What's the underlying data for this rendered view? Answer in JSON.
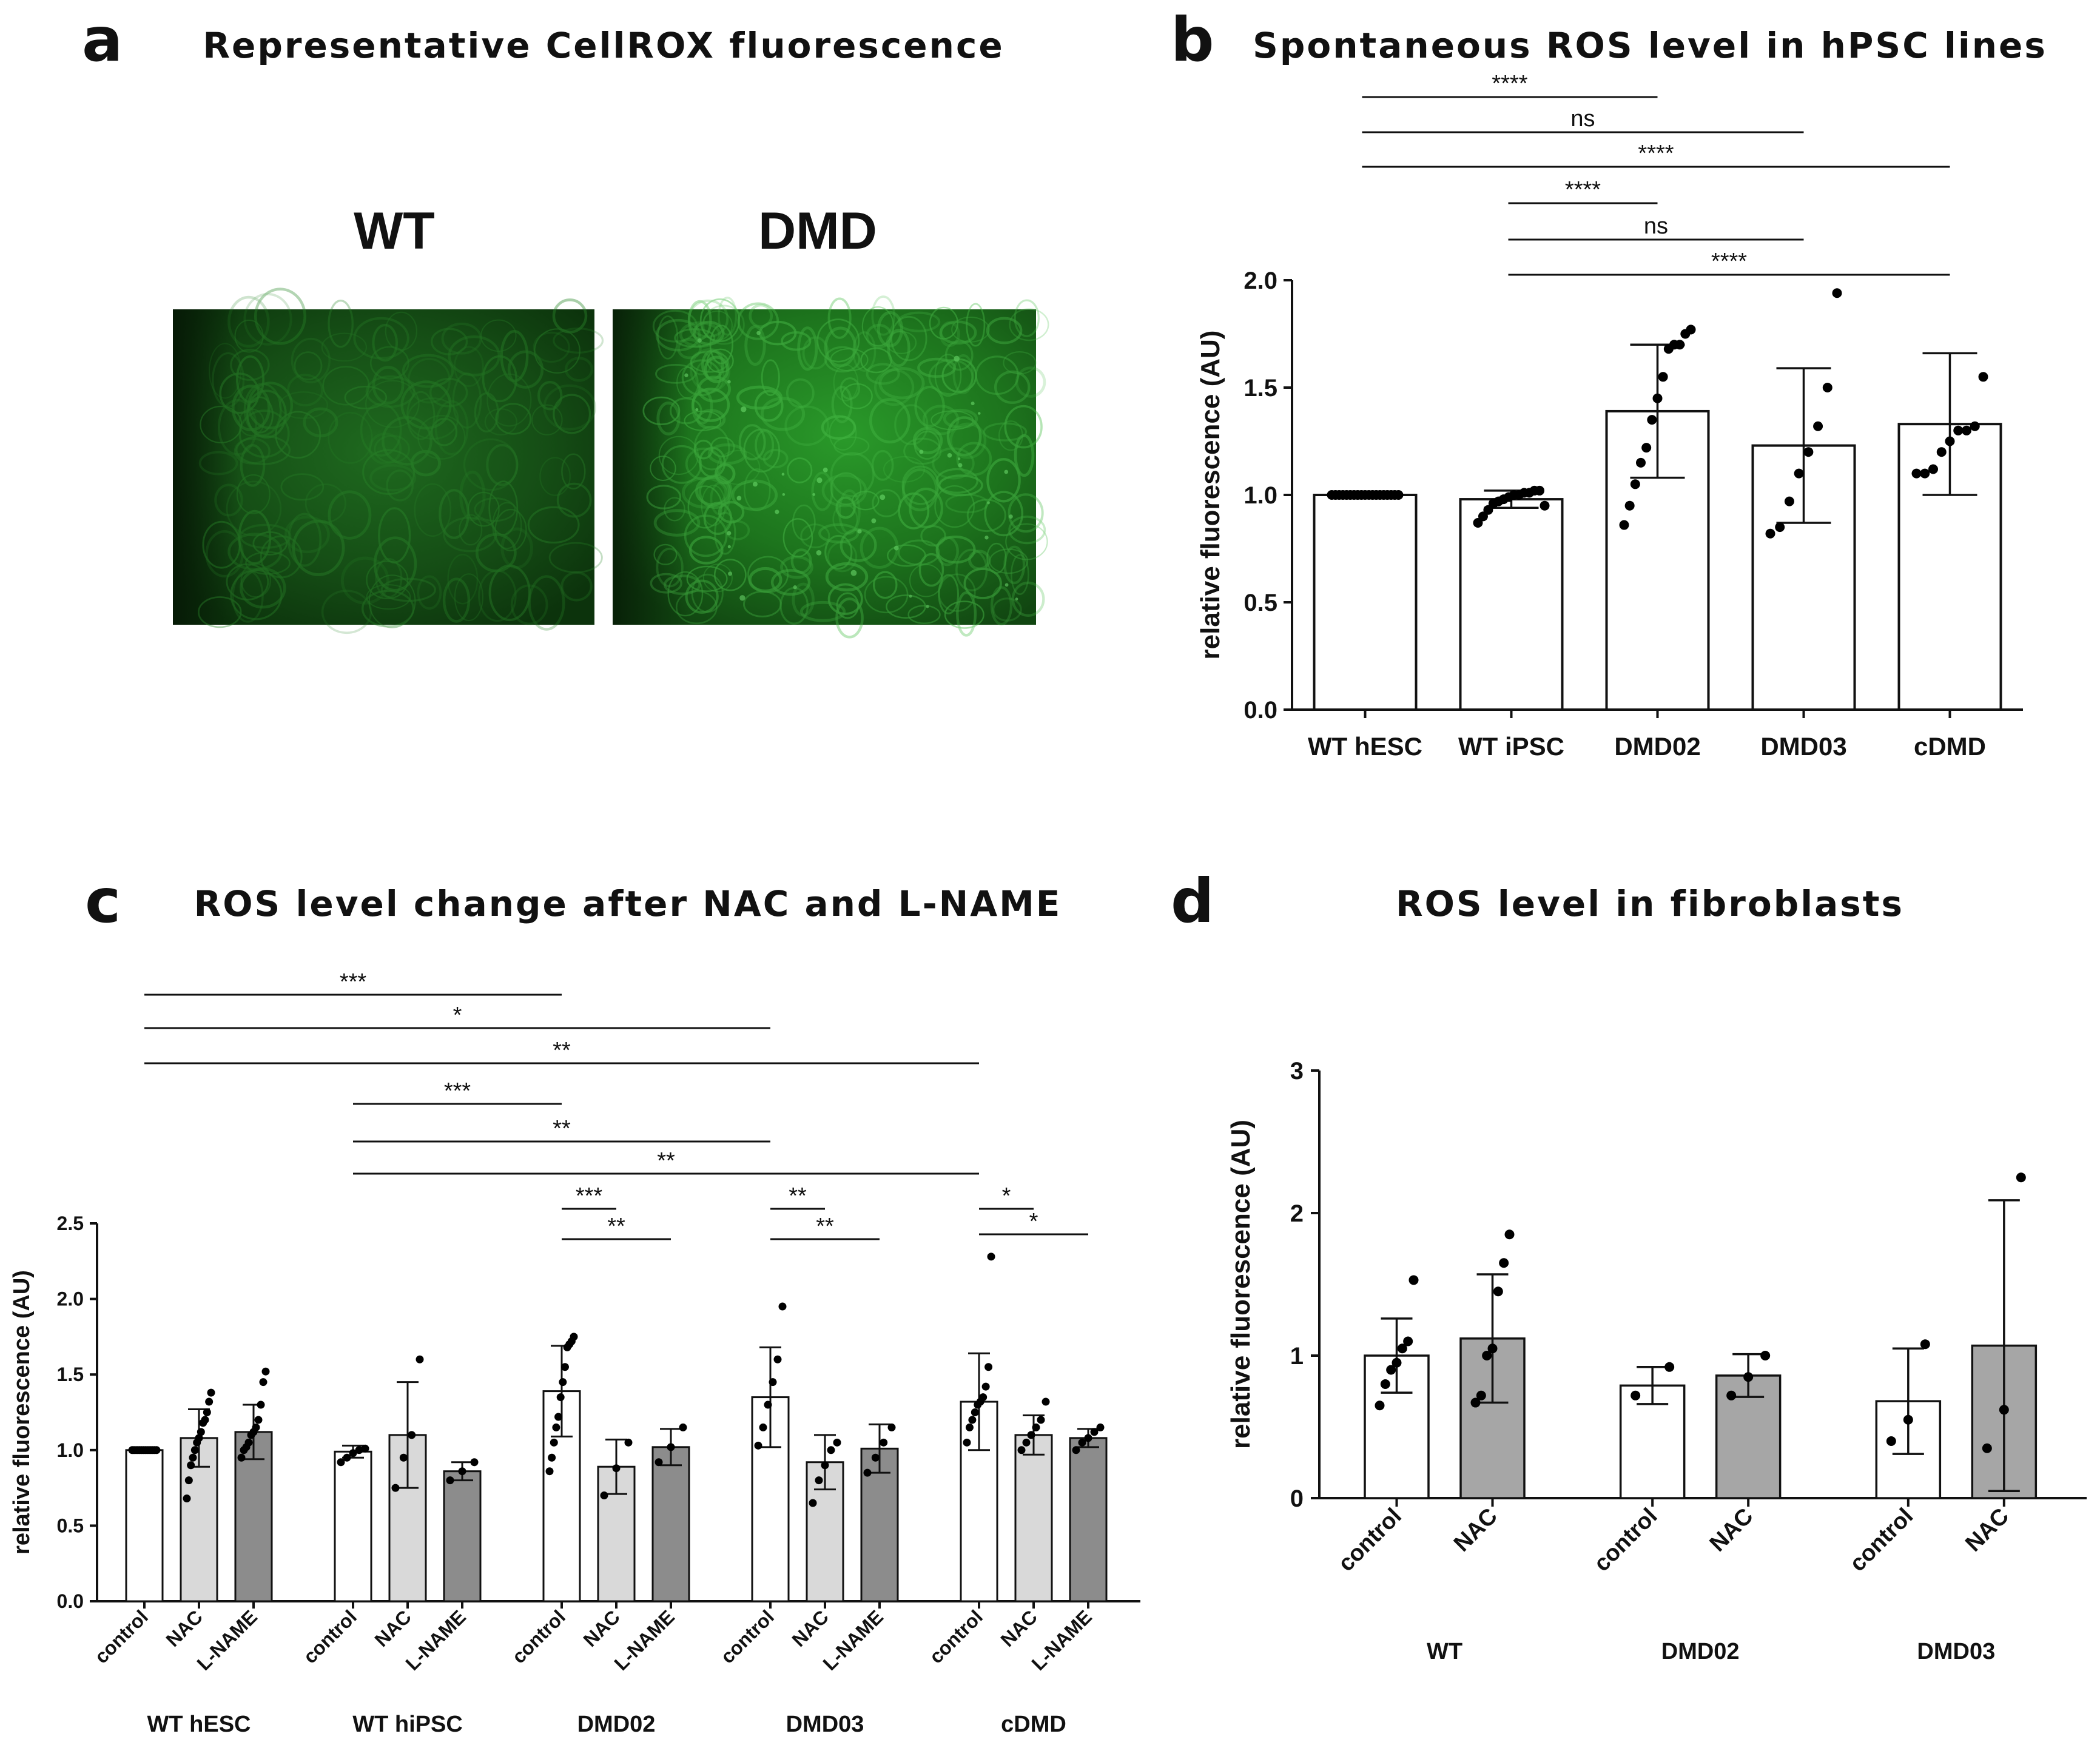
{
  "panels": {
    "a": {
      "letter": "a",
      "title": "Representative CellROX fluorescence",
      "labels": [
        "WT",
        "DMD"
      ],
      "image_colors": {
        "base": "#0c3a0c",
        "bright": "#2fae2f"
      }
    },
    "b": {
      "letter": "b",
      "title": "Spontaneous ROS level in hPSC lines"
    },
    "c": {
      "letter": "c",
      "title": "ROS level change after NAC and L-NAME"
    },
    "d": {
      "letter": "d",
      "title": "ROS level in fibroblasts"
    }
  },
  "colors": {
    "control": "#ffffff",
    "NAC": "#d9d9d9",
    "L-NAME": "#8c8c8c",
    "d_NAC": "#a6a6a6",
    "points": "#000000",
    "axis": "#111111"
  },
  "chart_data": [
    {
      "id": "b",
      "type": "bar",
      "title": "Spontaneous ROS level in hPSC lines",
      "ylabel": "relative fluorescence (AU)",
      "ylim": [
        0,
        2.0
      ],
      "yticks": [
        "0.0",
        "0.5",
        "1.0",
        "1.5",
        "2.0"
      ],
      "categories": [
        "WT hESC",
        "WT iPSC",
        "DMD02",
        "DMD03",
        "cDMD"
      ],
      "values": [
        1.0,
        0.98,
        1.39,
        1.23,
        1.33
      ],
      "error": [
        0.0,
        0.04,
        0.31,
        0.36,
        0.33
      ],
      "points": [
        [
          1,
          1,
          1,
          1,
          1,
          1,
          1,
          1,
          1,
          1,
          1,
          1,
          1,
          1,
          1,
          1,
          1,
          1,
          1
        ],
        [
          0.87,
          0.9,
          0.93,
          0.96,
          0.97,
          0.98,
          0.99,
          1.0,
          1.0,
          1.01,
          1.01,
          1.02,
          1.02,
          0.95
        ],
        [
          0.86,
          0.95,
          1.05,
          1.15,
          1.22,
          1.35,
          1.45,
          1.55,
          1.68,
          1.7,
          1.7,
          1.75,
          1.77
        ],
        [
          0.82,
          0.85,
          0.97,
          1.1,
          1.2,
          1.32,
          1.5,
          1.94
        ],
        [
          1.1,
          1.1,
          1.12,
          1.2,
          1.25,
          1.3,
          1.3,
          1.32,
          1.55
        ]
      ],
      "significance": [
        {
          "from": 0,
          "to": 2,
          "label": "****"
        },
        {
          "from": 0,
          "to": 3,
          "label": "ns"
        },
        {
          "from": 0,
          "to": 4,
          "label": "****"
        },
        {
          "from": 1,
          "to": 2,
          "label": "****"
        },
        {
          "from": 1,
          "to": 3,
          "label": "ns"
        },
        {
          "from": 1,
          "to": 4,
          "label": "****"
        }
      ]
    },
    {
      "id": "c",
      "type": "bar",
      "title": "ROS level change after NAC and L-NAME",
      "ylabel": "relative fluorescence (AU)",
      "ylim": [
        0,
        2.5
      ],
      "yticks": [
        "0.0",
        "0.5",
        "1.0",
        "1.5",
        "2.0",
        "2.5"
      ],
      "groups": [
        "WT hESC",
        "WT hiPSC",
        "DMD02",
        "DMD03",
        "cDMD"
      ],
      "conditions": [
        "control",
        "NAC",
        "L-NAME"
      ],
      "values": [
        [
          1.0,
          1.08,
          1.12
        ],
        [
          0.99,
          1.1,
          0.86
        ],
        [
          1.39,
          0.89,
          1.02
        ],
        [
          1.35,
          0.92,
          1.01
        ],
        [
          1.32,
          1.1,
          1.08
        ]
      ],
      "error": [
        [
          0.0,
          0.19,
          0.18
        ],
        [
          0.04,
          0.35,
          0.06
        ],
        [
          0.3,
          0.18,
          0.12
        ],
        [
          0.33,
          0.18,
          0.16
        ],
        [
          0.32,
          0.13,
          0.06
        ]
      ],
      "points": [
        [
          [
            1,
            1,
            1,
            1,
            1,
            1,
            1,
            1,
            1,
            1,
            1,
            1,
            1,
            1
          ],
          [
            0.68,
            0.8,
            0.9,
            0.95,
            1.0,
            1.05,
            1.08,
            1.12,
            1.18,
            1.2,
            1.25,
            1.32,
            1.38
          ],
          [
            0.95,
            1.0,
            1.02,
            1.05,
            1.1,
            1.12,
            1.15,
            1.2,
            1.3,
            1.45,
            1.52
          ]
        ],
        [
          [
            0.92,
            0.95,
            0.98,
            1.0,
            1.01
          ],
          [
            0.75,
            0.95,
            1.1,
            1.6
          ],
          [
            0.8,
            0.86,
            0.92
          ]
        ],
        [
          [
            0.86,
            0.95,
            1.05,
            1.15,
            1.22,
            1.35,
            1.45,
            1.55,
            1.68,
            1.7,
            1.72,
            1.75
          ],
          [
            0.7,
            0.88,
            1.05
          ],
          [
            0.92,
            1.02,
            1.15
          ]
        ],
        [
          [
            1.03,
            1.15,
            1.3,
            1.45,
            1.6,
            1.95
          ],
          [
            0.65,
            0.8,
            0.9,
            1.0,
            1.05
          ],
          [
            0.85,
            0.95,
            1.05,
            1.15
          ]
        ],
        [
          [
            1.05,
            1.15,
            1.2,
            1.25,
            1.3,
            1.32,
            1.35,
            1.42,
            1.55,
            2.28
          ],
          [
            1.0,
            1.05,
            1.1,
            1.15,
            1.2,
            1.32
          ],
          [
            1.0,
            1.05,
            1.08,
            1.12,
            1.15
          ]
        ]
      ],
      "significance": [
        {
          "from": [
            0,
            0
          ],
          "to": [
            2,
            0
          ],
          "label": "***"
        },
        {
          "from": [
            0,
            0
          ],
          "to": [
            3,
            0
          ],
          "label": "*"
        },
        {
          "from": [
            0,
            0
          ],
          "to": [
            4,
            0
          ],
          "label": "**"
        },
        {
          "from": [
            1,
            0
          ],
          "to": [
            2,
            0
          ],
          "label": "***"
        },
        {
          "from": [
            1,
            0
          ],
          "to": [
            3,
            0
          ],
          "label": "**"
        },
        {
          "from": [
            1,
            0
          ],
          "to": [
            4,
            0
          ],
          "label": "**"
        },
        {
          "from": [
            2,
            0
          ],
          "to": [
            2,
            1
          ],
          "label": "***"
        },
        {
          "from": [
            2,
            0
          ],
          "to": [
            2,
            2
          ],
          "label": "**"
        },
        {
          "from": [
            3,
            0
          ],
          "to": [
            3,
            1
          ],
          "label": "**"
        },
        {
          "from": [
            3,
            0
          ],
          "to": [
            3,
            2
          ],
          "label": "**"
        },
        {
          "from": [
            4,
            0
          ],
          "to": [
            4,
            1
          ],
          "label": "*"
        },
        {
          "from": [
            4,
            0
          ],
          "to": [
            4,
            2
          ],
          "label": "*"
        }
      ]
    },
    {
      "id": "d",
      "type": "bar",
      "title": "ROS level in fibroblasts",
      "ylabel": "relative fluorescence (AU)",
      "ylim": [
        0,
        3
      ],
      "yticks": [
        "0",
        "1",
        "2",
        "3"
      ],
      "groups": [
        "WT",
        "DMD02",
        "DMD03"
      ],
      "conditions": [
        "control",
        "NAC"
      ],
      "values": [
        [
          1.0,
          1.12
        ],
        [
          0.79,
          0.86
        ],
        [
          0.68,
          1.07
        ]
      ],
      "error": [
        [
          0.26,
          0.45
        ],
        [
          0.13,
          0.15
        ],
        [
          0.37,
          1.02
        ]
      ],
      "points": [
        [
          [
            0.65,
            0.8,
            0.9,
            0.95,
            1.05,
            1.1,
            1.53
          ],
          [
            0.67,
            0.72,
            1.0,
            1.05,
            1.45,
            1.65,
            1.85
          ]
        ],
        [
          [
            0.72,
            0.92
          ],
          [
            0.72,
            0.85,
            1.0
          ]
        ],
        [
          [
            0.4,
            0.55,
            1.08
          ],
          [
            0.35,
            0.62,
            2.25
          ]
        ]
      ]
    }
  ]
}
